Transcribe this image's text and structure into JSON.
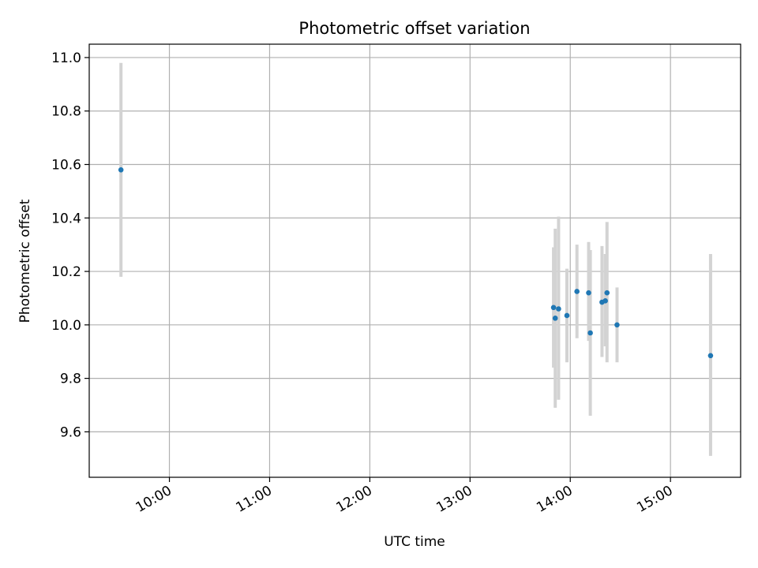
{
  "chart_data": {
    "type": "scatter",
    "title": "Photometric offset variation",
    "xlabel": "UTC time",
    "ylabel": "Photometric offset",
    "x_unit": "UTC time of day",
    "xlim": [
      "09:12",
      "15:42"
    ],
    "ylim": [
      9.43,
      11.05
    ],
    "xticks": [
      "10:00",
      "11:00",
      "12:00",
      "13:00",
      "14:00",
      "15:00"
    ],
    "yticks": [
      "9.6",
      "9.8",
      "10.0",
      "10.2",
      "10.4",
      "10.6",
      "10.8",
      "11.0"
    ],
    "grid": true,
    "legend": false,
    "marker_color": "#1f77b4",
    "errorbar_color": "#d3d3d3",
    "points": [
      {
        "x": "09:31",
        "y": 10.58,
        "yerr_low": 10.18,
        "yerr_high": 10.98
      },
      {
        "x": "13:50",
        "y": 10.065,
        "yerr_low": 9.84,
        "yerr_high": 10.29
      },
      {
        "x": "13:51",
        "y": 10.025,
        "yerr_low": 9.69,
        "yerr_high": 10.36
      },
      {
        "x": "13:53",
        "y": 10.06,
        "yerr_low": 9.72,
        "yerr_high": 10.405
      },
      {
        "x": "13:58",
        "y": 10.035,
        "yerr_low": 9.86,
        "yerr_high": 10.21
      },
      {
        "x": "14:04",
        "y": 10.125,
        "yerr_low": 9.95,
        "yerr_high": 10.3
      },
      {
        "x": "14:11",
        "y": 10.12,
        "yerr_low": 9.94,
        "yerr_high": 10.31
      },
      {
        "x": "14:12",
        "y": 9.97,
        "yerr_low": 9.66,
        "yerr_high": 10.28
      },
      {
        "x": "14:19",
        "y": 10.085,
        "yerr_low": 9.88,
        "yerr_high": 10.295
      },
      {
        "x": "14:21",
        "y": 10.09,
        "yerr_low": 9.92,
        "yerr_high": 10.265
      },
      {
        "x": "14:22",
        "y": 10.12,
        "yerr_low": 9.86,
        "yerr_high": 10.385
      },
      {
        "x": "14:28",
        "y": 10.0,
        "yerr_low": 9.86,
        "yerr_high": 10.14
      },
      {
        "x": "15:24",
        "y": 9.885,
        "yerr_low": 9.51,
        "yerr_high": 10.265
      }
    ]
  }
}
